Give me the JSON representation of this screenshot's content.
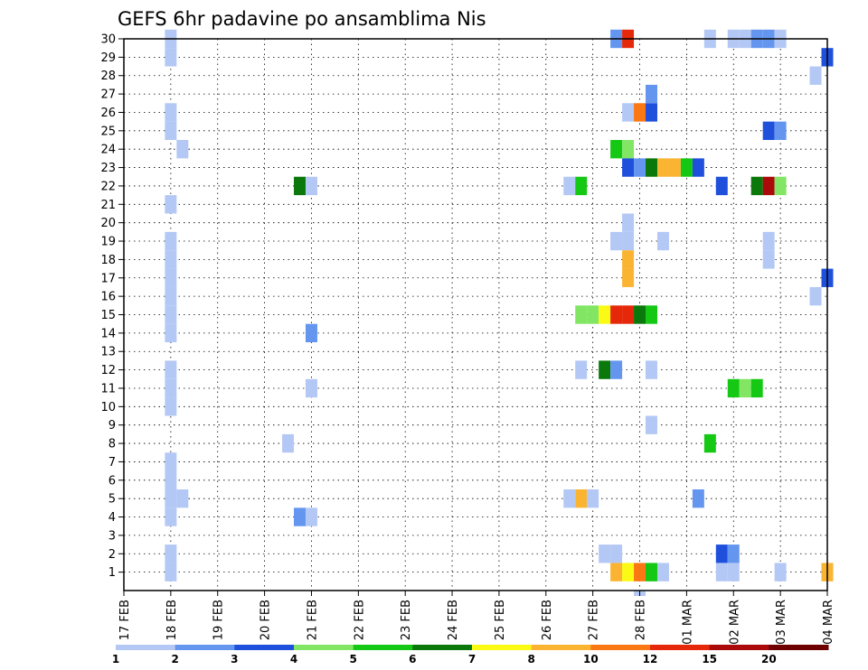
{
  "chart_data": {
    "type": "heatmap",
    "title": "GEFS 6hr padavine po ansamblima Nis",
    "y_ticks": [
      "1",
      "2",
      "3",
      "4",
      "5",
      "6",
      "7",
      "8",
      "9",
      "10",
      "11",
      "12",
      "13",
      "14",
      "15",
      "16",
      "17",
      "18",
      "19",
      "20",
      "21",
      "22",
      "23",
      "24",
      "25",
      "26",
      "27",
      "28",
      "29",
      "30"
    ],
    "x_ticks": [
      "17 FEB",
      "18 FEB",
      "19 FEB",
      "20 FEB",
      "21 FEB",
      "22 FEB",
      "23 FEB",
      "24 FEB",
      "25 FEB",
      "26 FEB",
      "27 FEB",
      "28 FEB",
      "01 MAR",
      "02 MAR",
      "03 MAR",
      "04 MAR"
    ],
    "x_range_days": [
      0,
      15
    ],
    "y_range": [
      0,
      30
    ],
    "grid": true,
    "colorbar": {
      "labels": [
        "1",
        "2",
        "3",
        "4",
        "5",
        "6",
        "7",
        "8",
        "10",
        "12",
        "15",
        "20"
      ],
      "colors": [
        "#b4c8f5",
        "#6496f0",
        "#1e50dc",
        "#82e664",
        "#14c814",
        "#0a780a",
        "#fafa14",
        "#fab432",
        "#fa7814",
        "#e6280a",
        "#aa0a0a",
        "#6e0000"
      ]
    },
    "cells_comment_free": true,
    "cells": [
      [
        1.0,
        1,
        0
      ],
      [
        1.0,
        2,
        0
      ],
      [
        1.0,
        4,
        0
      ],
      [
        1.0,
        5,
        0
      ],
      [
        1.0,
        6,
        0
      ],
      [
        1.0,
        7,
        0
      ],
      [
        1.0,
        10,
        0
      ],
      [
        1.0,
        11,
        0
      ],
      [
        1.0,
        12,
        0
      ],
      [
        1.0,
        14,
        0
      ],
      [
        1.0,
        15,
        0
      ],
      [
        1.0,
        16,
        0
      ],
      [
        1.0,
        17,
        0
      ],
      [
        1.0,
        18,
        0
      ],
      [
        1.0,
        19,
        0
      ],
      [
        1.0,
        21,
        0
      ],
      [
        1.0,
        25,
        0
      ],
      [
        1.0,
        26,
        0
      ],
      [
        1.0,
        29,
        0
      ],
      [
        1.0,
        30,
        0
      ],
      [
        1.25,
        5,
        0
      ],
      [
        1.25,
        24,
        0
      ],
      [
        3.5,
        8,
        0
      ],
      [
        3.75,
        4,
        1
      ],
      [
        4.0,
        4,
        0
      ],
      [
        3.75,
        22,
        5
      ],
      [
        4.0,
        22,
        0
      ],
      [
        4.0,
        14,
        1
      ],
      [
        4.0,
        11,
        0
      ],
      [
        9.5,
        5,
        0
      ],
      [
        9.75,
        5,
        7
      ],
      [
        10.0,
        5,
        0
      ],
      [
        9.5,
        22,
        0
      ],
      [
        9.75,
        22,
        4
      ],
      [
        9.75,
        12,
        0
      ],
      [
        9.75,
        15,
        3
      ],
      [
        10.0,
        15,
        3
      ],
      [
        10.25,
        15,
        6
      ],
      [
        10.5,
        15,
        9
      ],
      [
        10.75,
        15,
        9
      ],
      [
        11.0,
        15,
        5
      ],
      [
        11.25,
        15,
        4
      ],
      [
        10.25,
        12,
        5
      ],
      [
        10.5,
        12,
        1
      ],
      [
        11.25,
        12,
        0
      ],
      [
        10.25,
        2,
        0
      ],
      [
        10.5,
        2,
        0
      ],
      [
        10.5,
        1,
        7
      ],
      [
        10.75,
        1,
        6
      ],
      [
        11.0,
        1,
        8
      ],
      [
        11.25,
        1,
        4
      ],
      [
        11.5,
        1,
        0
      ],
      [
        10.5,
        19,
        0
      ],
      [
        10.75,
        19,
        0
      ],
      [
        10.75,
        20,
        0
      ],
      [
        10.75,
        17,
        7
      ],
      [
        10.75,
        18,
        7
      ],
      [
        10.5,
        24,
        4
      ],
      [
        10.75,
        24,
        3
      ],
      [
        10.75,
        23,
        2
      ],
      [
        11.0,
        23,
        1
      ],
      [
        11.25,
        23,
        5
      ],
      [
        11.5,
        23,
        7
      ],
      [
        11.75,
        23,
        7
      ],
      [
        12.0,
        23,
        4
      ],
      [
        12.25,
        23,
        2
      ],
      [
        10.75,
        26,
        0
      ],
      [
        11.0,
        26,
        8
      ],
      [
        11.25,
        26,
        2
      ],
      [
        11.25,
        27,
        1
      ],
      [
        10.5,
        30,
        1
      ],
      [
        10.75,
        30,
        9
      ],
      [
        11.25,
        9,
        0
      ],
      [
        11.5,
        19,
        0
      ],
      [
        12.25,
        5,
        1
      ],
      [
        12.5,
        8,
        4
      ],
      [
        12.5,
        30,
        0
      ],
      [
        13.0,
        30,
        0
      ],
      [
        13.25,
        30,
        0
      ],
      [
        13.5,
        30,
        1
      ],
      [
        13.75,
        30,
        1
      ],
      [
        14.0,
        30,
        0
      ],
      [
        12.75,
        22,
        2
      ],
      [
        13.5,
        22,
        5
      ],
      [
        13.75,
        22,
        10
      ],
      [
        14.0,
        22,
        3
      ],
      [
        13.75,
        25,
        2
      ],
      [
        14.0,
        25,
        1
      ],
      [
        12.75,
        2,
        2
      ],
      [
        13.0,
        2,
        1
      ],
      [
        12.75,
        1,
        0
      ],
      [
        13.0,
        1,
        0
      ],
      [
        14.0,
        1,
        0
      ],
      [
        13.0,
        11,
        4
      ],
      [
        13.25,
        11,
        3
      ],
      [
        13.5,
        11,
        4
      ],
      [
        13.75,
        18,
        0
      ],
      [
        13.75,
        19,
        0
      ],
      [
        14.75,
        16,
        0
      ],
      [
        14.75,
        28,
        0
      ],
      [
        15.0,
        29,
        2
      ],
      [
        15.0,
        17,
        2
      ],
      [
        15.0,
        1,
        7
      ],
      [
        11.0,
        0,
        0
      ]
    ]
  }
}
